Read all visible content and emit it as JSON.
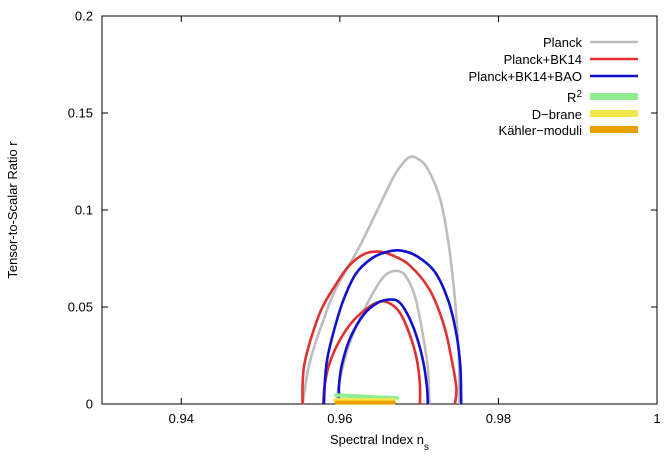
{
  "chart_data": {
    "type": "line",
    "title": "",
    "xlabel": "Spectral Index n",
    "xlabel_subscript": "s",
    "ylabel": "Tensor-to-Scalar Ratio r",
    "xlim": [
      0.93,
      1.0
    ],
    "ylim": [
      0,
      0.2
    ],
    "xticks": [
      0.94,
      0.96,
      0.98,
      1.0
    ],
    "xtick_labels": [
      "0.94",
      "0.96",
      "0.98",
      "1"
    ],
    "yticks": [
      0,
      0.05,
      0.1,
      0.15,
      0.2
    ],
    "ytick_labels": [
      "0",
      "0.05",
      "0.1",
      "0.15",
      "0.2"
    ],
    "grid": false,
    "legend_position": "top-right",
    "series": [
      {
        "name": "Planck",
        "color": "#bdbdbd",
        "contours": [
          [
            [
              0.9553,
              0
            ],
            [
              0.9556,
              0.008
            ],
            [
              0.956,
              0.018
            ],
            [
              0.9568,
              0.03
            ],
            [
              0.958,
              0.044
            ],
            [
              0.959,
              0.055
            ],
            [
              0.9605,
              0.067
            ],
            [
              0.9622,
              0.079
            ],
            [
              0.9638,
              0.092
            ],
            [
              0.9658,
              0.109
            ],
            [
              0.9672,
              0.12
            ],
            [
              0.9687,
              0.127
            ],
            [
              0.9698,
              0.1265
            ],
            [
              0.9711,
              0.121
            ],
            [
              0.9727,
              0.105
            ],
            [
              0.9738,
              0.08
            ],
            [
              0.9746,
              0.05
            ],
            [
              0.975,
              0.025
            ],
            [
              0.9751,
              0
            ]
          ],
          [
            [
              0.9596,
              0
            ],
            [
              0.9598,
              0.008
            ],
            [
              0.9603,
              0.018
            ],
            [
              0.9612,
              0.031
            ],
            [
              0.9624,
              0.043
            ],
            [
              0.964,
              0.056
            ],
            [
              0.9655,
              0.0655
            ],
            [
              0.9668,
              0.0685
            ],
            [
              0.9682,
              0.0665
            ],
            [
              0.9695,
              0.055
            ],
            [
              0.9705,
              0.035
            ],
            [
              0.9711,
              0.018
            ],
            [
              0.9713,
              0
            ]
          ]
        ]
      },
      {
        "name": "Planck+BK14",
        "color": "#e03030",
        "contours": [
          [
            [
              0.9553,
              0
            ],
            [
              0.9553,
              0.01
            ],
            [
              0.9555,
              0.02
            ],
            [
              0.9563,
              0.033
            ],
            [
              0.9577,
              0.049
            ],
            [
              0.9594,
              0.061
            ],
            [
              0.9612,
              0.0715
            ],
            [
              0.9632,
              0.0775
            ],
            [
              0.965,
              0.0785
            ],
            [
              0.9667,
              0.0765
            ],
            [
              0.9688,
              0.0715
            ],
            [
              0.9713,
              0.059
            ],
            [
              0.9731,
              0.041
            ],
            [
              0.9741,
              0.023
            ],
            [
              0.9747,
              0.008
            ],
            [
              0.9745,
              0
            ]
          ],
          [
            [
              0.9579,
              0
            ],
            [
              0.9581,
              0.01
            ],
            [
              0.9587,
              0.021
            ],
            [
              0.96,
              0.033
            ],
            [
              0.9617,
              0.043
            ],
            [
              0.9635,
              0.0495
            ],
            [
              0.9648,
              0.0525
            ],
            [
              0.966,
              0.0525
            ],
            [
              0.9675,
              0.0475
            ],
            [
              0.9688,
              0.036
            ],
            [
              0.9697,
              0.023
            ],
            [
              0.9701,
              0.01
            ],
            [
              0.9701,
              0
            ]
          ]
        ]
      },
      {
        "name": "Planck+BK14+BAO",
        "color": "#1010d0",
        "contours": [
          [
            [
              0.958,
              0
            ],
            [
              0.9581,
              0.011
            ],
            [
              0.9584,
              0.023
            ],
            [
              0.9592,
              0.037
            ],
            [
              0.9604,
              0.053
            ],
            [
              0.962,
              0.067
            ],
            [
              0.964,
              0.075
            ],
            [
              0.966,
              0.0785
            ],
            [
              0.9678,
              0.079
            ],
            [
              0.9698,
              0.076
            ],
            [
              0.972,
              0.068
            ],
            [
              0.9737,
              0.053
            ],
            [
              0.9747,
              0.036
            ],
            [
              0.9752,
              0.019
            ],
            [
              0.9753,
              0
            ]
          ],
          [
            [
              0.9599,
              0
            ],
            [
              0.9599,
              0.01
            ],
            [
              0.9603,
              0.021
            ],
            [
              0.9613,
              0.034
            ],
            [
              0.963,
              0.046
            ],
            [
              0.9647,
              0.052
            ],
            [
              0.9662,
              0.0538
            ],
            [
              0.9675,
              0.0525
            ],
            [
              0.9688,
              0.044
            ],
            [
              0.9699,
              0.032
            ],
            [
              0.9706,
              0.02
            ],
            [
              0.971,
              0.008
            ],
            [
              0.9711,
              0
            ]
          ]
        ]
      },
      {
        "name": "R²",
        "legend_label": "R",
        "legend_superscript": "2",
        "color": "#90ee90",
        "band": [
          [
            0.9595,
            0.0045
          ],
          [
            0.9672,
            0.003
          ]
        ]
      },
      {
        "name": "D−brane",
        "legend_label": "D−brane",
        "color": "#f2e64a",
        "band": [
          [
            0.9594,
            0.002
          ],
          [
            0.9668,
            0.002
          ]
        ]
      },
      {
        "name": "Kähler−moduli",
        "legend_label": "Kähler−moduli",
        "color": "#e8a000",
        "band": [
          [
            0.9596,
            0.0007
          ],
          [
            0.9668,
            0.0007
          ]
        ]
      }
    ]
  }
}
